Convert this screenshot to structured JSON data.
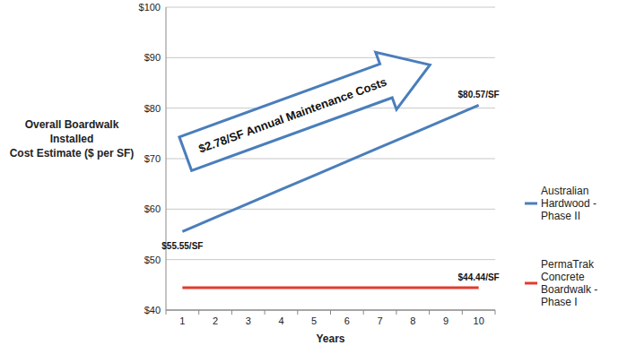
{
  "chart_data": {
    "type": "line",
    "ylabel": "Overall Boardwalk\nInstalled\nCost Estimate ($ per SF)",
    "xlabel": "Years",
    "annotations": [
      "$2.78/SF Annual Maintenance Costs"
    ],
    "categories": [
      "1",
      "2",
      "3",
      "4",
      "5",
      "6",
      "7",
      "8",
      "9",
      "10"
    ],
    "series": [
      {
        "name": "Australian Hardwood - Phase II",
        "color": "#4a7ebb",
        "values": [
          55.55,
          58.33,
          61.11,
          63.89,
          66.67,
          69.45,
          72.23,
          75.01,
          77.79,
          80.57
        ],
        "data_labels": true,
        "value_labels": [
          "$55.55/SF",
          null,
          null,
          null,
          null,
          null,
          null,
          null,
          null,
          "$80.57/SF"
        ]
      },
      {
        "name": "PermaTrak Concrete Boardwalk - Phase I",
        "color": "#e23b2e",
        "values": [
          44.44,
          44.44,
          44.44,
          44.44,
          44.44,
          44.44,
          44.44,
          44.44,
          44.44,
          44.44
        ],
        "data_labels": true,
        "value_labels": [
          null,
          null,
          null,
          null,
          null,
          null,
          null,
          null,
          null,
          "$44.44/SF"
        ]
      }
    ],
    "ylim": [
      40,
      100
    ],
    "yticks": [
      {
        "value": 40,
        "label": "$40"
      },
      {
        "value": 50,
        "label": "$50"
      },
      {
        "value": 60,
        "label": "$60"
      },
      {
        "value": 70,
        "label": "$70"
      },
      {
        "value": 80,
        "label": "$80"
      },
      {
        "value": 90,
        "label": "$90"
      },
      {
        "value": 100,
        "label": "$100"
      }
    ],
    "grid": true,
    "legend": "right"
  }
}
